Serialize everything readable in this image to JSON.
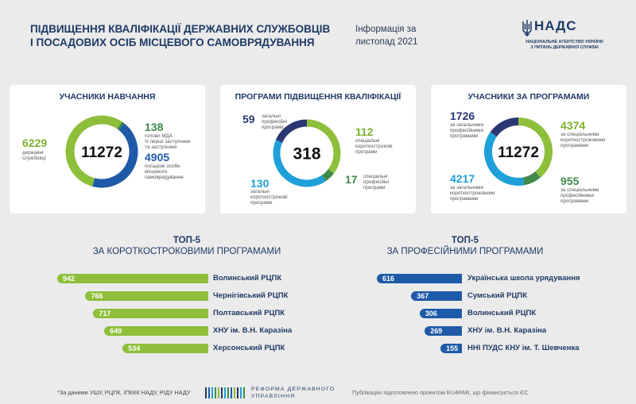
{
  "header": {
    "title_line1": "ПІДВИЩЕННЯ КВАЛІФІКАЦІЇ ДЕРЖАВНИХ СЛУЖБОВЦІВ",
    "title_line2": "І ПОСАДОВИХ ОСІБ МІСЦЕВОГО САМОВРЯДУВАННЯ",
    "info_line1": "Інформація за",
    "info_line2": "листопад 2021",
    "logo_name": "НАДС",
    "logo_sub_line1": "НАЦІОНАЛЬНЕ АГЕНТСТВО УКРАЇНИ",
    "logo_sub_line2": "З ПИТАНЬ ДЕРЖАВНОЇ СЛУЖБИ"
  },
  "colors": {
    "green": "#8dbf3b",
    "navy": "#2a3772",
    "blue": "#1fa0d9",
    "dark_blue": "#1e5aa8",
    "dark_green": "#3f8a4a",
    "title": "#1e3a66"
  },
  "cards": {
    "card1": {
      "title": "УЧАСНИКИ НАВЧАННЯ",
      "total": "11272",
      "left_num": "6229",
      "left_txt1": "державні",
      "left_txt2": "службовці",
      "tr_num": "138",
      "tr_txt1": "голови МДА",
      "tr_txt2": "їх перші заступники",
      "tr_txt3": "та заступники",
      "br_num": "4905",
      "br_txt1": "посадові особи",
      "br_txt2": "місцевого",
      "br_txt3": "самоврядування"
    },
    "card2": {
      "title": "ПРОГРАМИ ПІДВИЩЕННЯ КВАЛІФІКАЦІЇ",
      "total": "318",
      "tl_num": "59",
      "tl_txt1": "загальні",
      "tl_txt2": "професійні",
      "tl_txt3": "програми",
      "tr_num": "112",
      "tr_txt1": "спеціальні",
      "tr_txt2": "короткострокові",
      "tr_txt3": "програми",
      "r_num": "17",
      "r_txt1": "спеціальні",
      "r_txt2": "професійні",
      "r_txt3": "програми",
      "bl_num": "130",
      "bl_txt1": "загальні",
      "bl_txt2": "короткострокові",
      "bl_txt3": "програми"
    },
    "card3": {
      "title": "УЧАСНИКИ ЗА ПРОГРАМАМИ",
      "total": "11272",
      "tl_num": "1726",
      "tl_txt1": "за загальними",
      "tl_txt2": "професійними",
      "tl_txt3": "програмами",
      "tr_num": "4374",
      "tr_txt1": "за спеціальними",
      "tr_txt2": "короткостроковими",
      "tr_txt3": "програмами",
      "bl_num": "4217",
      "bl_txt1": "за загальними",
      "bl_txt2": "короткостроковими",
      "bl_txt3": "програмами",
      "br_num": "955",
      "br_txt1": "за спеціальними",
      "br_txt2": "професійними",
      "br_txt3": "програмами"
    }
  },
  "top_left": {
    "line1": "ТОП-5",
    "line2": "ЗА КОРОТКОСТРОКОВИМИ ПРОГРАМАМИ"
  },
  "top_right": {
    "line1": "ТОП-5",
    "line2": "ЗА ПРОФЕСІЙНИМИ ПРОГРАМАМИ"
  },
  "footer": {
    "source": "*За даними УШУ, РЦПК, ІПККК НАДУ, РІДУ НАДУ",
    "reform_line1": "РЕФОРМА ДЕРЖАВНОГО",
    "reform_line2": "УПРАВЛІННЯ",
    "publication": "Публікацію підготовлено проектом EU4PAR, що фінансується ЄС"
  },
  "chart_data": [
    {
      "type": "pie",
      "title": "УЧАСНИКИ НАВЧАННЯ",
      "total": 11272,
      "slices": [
        {
          "label": "державні службовці",
          "value": 6229,
          "color": "#8dbf3b"
        },
        {
          "label": "голови МДА їх перші заступники та заступники",
          "value": 138,
          "color": "#3f8a4a"
        },
        {
          "label": "посадові особи місцевого самоврядування",
          "value": 4905,
          "color": "#1e5aa8"
        }
      ]
    },
    {
      "type": "pie",
      "title": "ПРОГРАМИ ПІДВИЩЕННЯ КВАЛІФІКАЦІЇ",
      "total": 318,
      "slices": [
        {
          "label": "спеціальні короткострокові програми",
          "value": 112,
          "color": "#8dbf3b"
        },
        {
          "label": "спеціальні професійні програми",
          "value": 17,
          "color": "#3f8a4a"
        },
        {
          "label": "загальні короткострокові програми",
          "value": 130,
          "color": "#1fa0d9"
        },
        {
          "label": "загальні професійні програми",
          "value": 59,
          "color": "#2a3772"
        }
      ]
    },
    {
      "type": "pie",
      "title": "УЧАСНИКИ ЗА ПРОГРАМАМИ",
      "total": 11272,
      "slices": [
        {
          "label": "за спеціальними короткостроковими програмами",
          "value": 4374,
          "color": "#8dbf3b"
        },
        {
          "label": "за спеціальними професійними програмами",
          "value": 955,
          "color": "#3f8a4a"
        },
        {
          "label": "за загальними короткостроковими програмами",
          "value": 4217,
          "color": "#1fa0d9"
        },
        {
          "label": "за загальними професійними програмами",
          "value": 1726,
          "color": "#2a3772"
        }
      ]
    },
    {
      "type": "bar",
      "title": "ТОП-5 ЗА КОРОТКОСТРОКОВИМИ ПРОГРАМАМИ",
      "categories": [
        "Волинський РЦПК",
        "Чернігівський РЦПК",
        "Полтавський РЦПК",
        "ХНУ ім. В.Н. Каразіна",
        "Херсонський РЦПК"
      ],
      "values": [
        942,
        766,
        717,
        649,
        534
      ],
      "color": "#8dbf3b"
    },
    {
      "type": "bar",
      "title": "ТОП-5 ЗА ПРОФЕСІЙНИМИ ПРОГРАМАМИ",
      "categories": [
        "Українська школа урядування",
        "Сумський РЦПК",
        "Волинський РЦПК",
        "ХНУ ім. В.Н. Каразіна",
        "ННІ ПУДС КНУ ім. Т. Шевченка"
      ],
      "values": [
        616,
        367,
        306,
        269,
        155
      ],
      "color": "#1e5aa8"
    }
  ]
}
